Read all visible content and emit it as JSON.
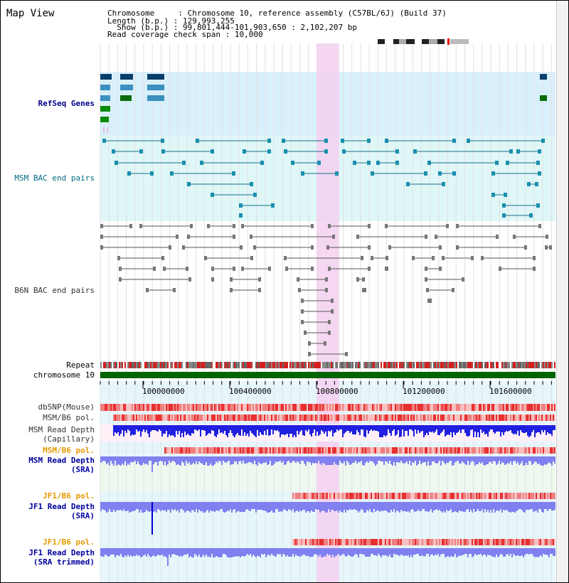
{
  "title": "Map View",
  "info": {
    "chromosome_key": "Chromosome     ",
    "chromosome_val": "Chromosome 10, reference assembly (C57BL/6J) (Build 37)",
    "length_key": "Length (b.p.) ",
    "length_val": "129,993,255",
    "show_key": "  Show (b.p.) ",
    "show_val": "99,801,444-101,903,650 : 2,102,207 bp",
    "span_key": "Read coverage check span ",
    "span_val": "10,000"
  },
  "tracks": {
    "refseq": "RefSeq Genes",
    "msm_bac": "MSM BAC end pairs",
    "b6n_bac": "B6N BAC end pairs",
    "repeat": "Repeat",
    "chromosome": "chromosome 10",
    "dbsnp": "dbSNP(Mouse)",
    "msm_b6_pol": "MSM/B6 pol.",
    "msm_read_depth_cap_1": "MSM Read Depth",
    "msm_read_depth_cap_2": "(Capillary)",
    "msm_b6_pol_sra": "MSM/B6 pol.",
    "msm_read_depth_sra_1": "MSM Read Depth",
    "msm_read_depth_sra_2": "(SRA)",
    "jf1_b6_pol_1": "JF1/B6 pol.",
    "jf1_read_depth_1": "JF1 Read Depth",
    "jf1_read_depth_1b": "(SRA)",
    "jf1_b6_pol_2": "JF1/B6 pol.",
    "jf1_read_depth_2": "JF1 Read Depth",
    "jf1_read_depth_2b": "(SRA trimmed)"
  },
  "axis": {
    "ticks": [
      "100000000",
      "100400000",
      "100800000",
      "101200000",
      "101600000"
    ]
  },
  "colors": {
    "highlight": "#f5d0f0",
    "refseq_bg": "#d8f0fa",
    "msm_bg": "#dff7f7",
    "chrom_green": "#006400",
    "snp_red": "#e83030",
    "depth_blue": "#2020e0",
    "depth_light": "#8080f0"
  }
}
